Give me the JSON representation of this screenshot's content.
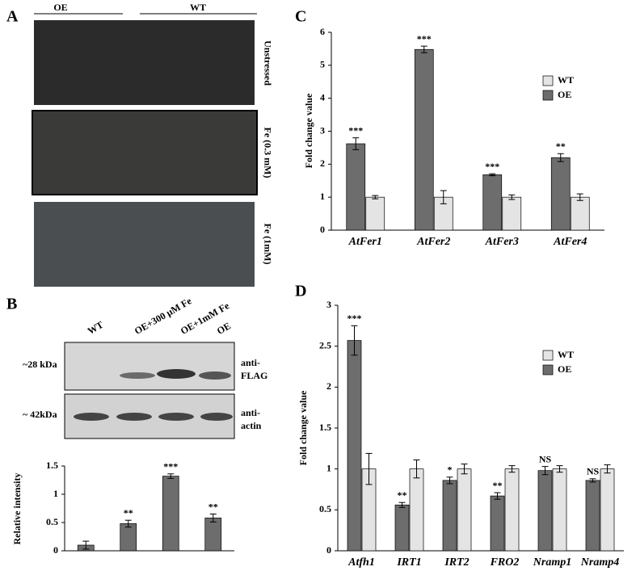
{
  "panels": {
    "a": {
      "label": "A",
      "groups": [
        "OE",
        "WT"
      ],
      "conditions": [
        "Unstressed",
        "Fe (0.3 mM)",
        "Fe (1mM)"
      ]
    },
    "b": {
      "label": "B",
      "sizes": [
        "~28 kDa",
        "~ 42kDa"
      ],
      "antibodies": [
        [
          "anti-",
          "FLAG"
        ],
        [
          "anti-",
          "actin"
        ]
      ]
    },
    "c": {
      "label": "C"
    },
    "d": {
      "label": "D"
    }
  },
  "chart_data": [
    {
      "type": "bar",
      "y_label": "Relative intensity",
      "categories": [
        "WT",
        "OE+300 µM Fe",
        "OE+1mM Fe",
        "OE"
      ],
      "values": [
        0.1,
        0.48,
        1.32,
        0.58
      ],
      "errors": [
        0.07,
        0.06,
        0.04,
        0.07
      ],
      "annotations": [
        null,
        "**",
        "***",
        "**"
      ],
      "color": "#6d6d6d",
      "ylim": [
        0,
        1.5
      ],
      "yticks": [
        0,
        0.5,
        1,
        1.5
      ]
    },
    {
      "type": "bar",
      "y_label": "Fold change value",
      "categories": [
        "AtFer1",
        "AtFer2",
        "AtFer3",
        "AtFer4"
      ],
      "series": [
        {
          "name": "WT",
          "color": "#e4e4e4",
          "values": [
            1,
            1,
            1,
            1
          ],
          "errors": [
            0.05,
            0.2,
            0.07,
            0.1
          ]
        },
        {
          "name": "OE",
          "color": "#6d6d6d",
          "values": [
            2.62,
            5.48,
            1.68,
            2.2
          ],
          "errors": [
            0.18,
            0.1,
            0.03,
            0.12
          ],
          "annotations": [
            "***",
            "***",
            "***",
            "**"
          ]
        }
      ],
      "ylim": [
        0,
        6
      ],
      "yticks": [
        0,
        1,
        2,
        3,
        4,
        5,
        6
      ]
    },
    {
      "type": "bar",
      "y_label": "Fold change value",
      "categories": [
        "Atfh1",
        "IRT1",
        "IRT2",
        "FRO2",
        "Nramp1",
        "Nramp4"
      ],
      "series": [
        {
          "name": "WT",
          "color": "#e4e4e4",
          "values": [
            1,
            1,
            1,
            1,
            1,
            1
          ],
          "errors": [
            0.19,
            0.11,
            0.06,
            0.04,
            0.04,
            0.05
          ]
        },
        {
          "name": "OE",
          "color": "#6d6d6d",
          "values": [
            2.57,
            0.56,
            0.86,
            0.67,
            0.98,
            0.86
          ],
          "errors": [
            0.18,
            0.03,
            0.04,
            0.04,
            0.05,
            0.02
          ],
          "annotations": [
            "***",
            "**",
            "*",
            "**",
            "NS",
            "NS"
          ]
        }
      ],
      "ylim": [
        0,
        3
      ],
      "yticks": [
        0,
        0.5,
        1,
        1.5,
        2,
        2.5,
        3
      ]
    }
  ]
}
